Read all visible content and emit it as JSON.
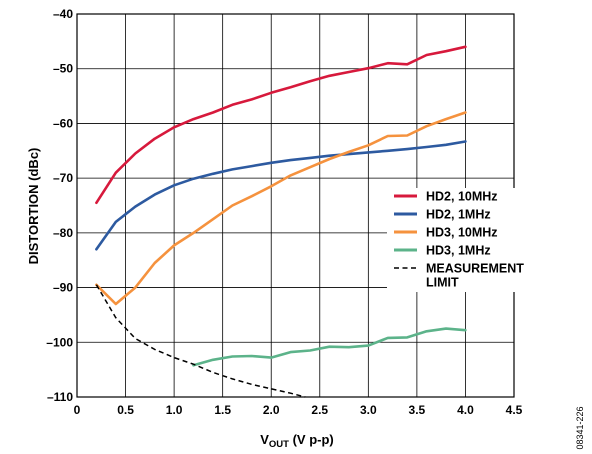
{
  "chart_data": {
    "type": "line",
    "title": "",
    "xlabel": "V_OUT (V p-p)",
    "xlabel_main": "V",
    "xlabel_sub": "OUT",
    "xlabel_rest": " (V p-p)",
    "ylabel": "DISTORTION (dBc)",
    "xlim": [
      0,
      4.5
    ],
    "ylim": [
      -110,
      -40
    ],
    "xticks": [
      0,
      0.5,
      1.0,
      1.5,
      2.0,
      2.5,
      3.0,
      3.5,
      4.0,
      4.5
    ],
    "xtick_labels": [
      "0",
      "0.5",
      "1.0",
      "1.5",
      "2.0",
      "2.5",
      "3.0",
      "3.5",
      "4.0",
      "4.5"
    ],
    "yticks": [
      -40,
      -50,
      -60,
      -70,
      -80,
      -90,
      -100,
      -110
    ],
    "ytick_labels": [
      "–40",
      "–50",
      "–60",
      "–70",
      "–80",
      "–90",
      "–100",
      "–110"
    ],
    "grid": true,
    "legend_position": "right-middle",
    "figure_code": "08341-226",
    "series": [
      {
        "name": "HD2, 10MHz",
        "color": "#d7193c",
        "style": "solid",
        "x": [
          0.2,
          0.4,
          0.6,
          0.8,
          1.0,
          1.2,
          1.4,
          1.6,
          1.8,
          2.0,
          2.2,
          2.4,
          2.6,
          2.8,
          3.0,
          3.2,
          3.4,
          3.6,
          3.8,
          4.0
        ],
        "y": [
          -74.5,
          -69,
          -65.5,
          -62.8,
          -60.7,
          -59.2,
          -58,
          -56.6,
          -55.6,
          -54.4,
          -53.4,
          -52.3,
          -51.3,
          -50.6,
          -49.9,
          -49,
          -49.2,
          -47.5,
          -46.8,
          -46
        ]
      },
      {
        "name": "HD2, 1MHz",
        "color": "#2d5aa0",
        "style": "solid",
        "x": [
          0.2,
          0.4,
          0.6,
          0.8,
          1.0,
          1.2,
          1.4,
          1.6,
          1.8,
          2.0,
          2.2,
          2.4,
          2.6,
          2.8,
          3.0,
          3.2,
          3.4,
          3.6,
          3.8,
          4.0
        ],
        "y": [
          -83,
          -78,
          -75.2,
          -73,
          -71.3,
          -70.1,
          -69.2,
          -68.4,
          -67.8,
          -67.2,
          -66.7,
          -66.3,
          -65.9,
          -65.6,
          -65.3,
          -65,
          -64.7,
          -64.3,
          -63.9,
          -63.3
        ]
      },
      {
        "name": "HD3, 10MHz",
        "color": "#f5923e",
        "style": "solid",
        "x": [
          0.2,
          0.4,
          0.6,
          0.8,
          1.0,
          1.2,
          1.4,
          1.6,
          1.8,
          2.0,
          2.2,
          2.4,
          2.6,
          2.8,
          3.0,
          3.2,
          3.4,
          3.6,
          3.8,
          4.0
        ],
        "y": [
          -89.5,
          -93,
          -90,
          -85.5,
          -82.3,
          -80,
          -77.5,
          -75,
          -73.3,
          -71.5,
          -69.5,
          -68,
          -66.5,
          -65.2,
          -64,
          -62.3,
          -62.2,
          -60.5,
          -59.2,
          -58
        ]
      },
      {
        "name": "HD3, 1MHz",
        "color": "#5cb38a",
        "style": "solid",
        "x": [
          1.2,
          1.4,
          1.6,
          1.8,
          2.0,
          2.2,
          2.4,
          2.6,
          2.8,
          3.0,
          3.2,
          3.4,
          3.6,
          3.8,
          4.0
        ],
        "y": [
          -104.2,
          -103.2,
          -102.6,
          -102.5,
          -102.8,
          -101.8,
          -101.5,
          -100.8,
          -100.9,
          -100.6,
          -99.2,
          -99.1,
          -98,
          -97.5,
          -97.8
        ]
      },
      {
        "name": "MEASUREMENT LIMIT",
        "legend_lines": [
          "MEASUREMENT",
          "LIMIT"
        ],
        "color": "#000000",
        "style": "dashed",
        "x": [
          0.2,
          0.4,
          0.6,
          0.8,
          1.0,
          1.2,
          1.4,
          1.6,
          1.8,
          2.0,
          2.2,
          2.35
        ],
        "y": [
          -89.5,
          -95.5,
          -99.3,
          -101.3,
          -102.8,
          -104,
          -105.5,
          -106.7,
          -107.7,
          -108.5,
          -109.3,
          -110
        ]
      }
    ]
  }
}
